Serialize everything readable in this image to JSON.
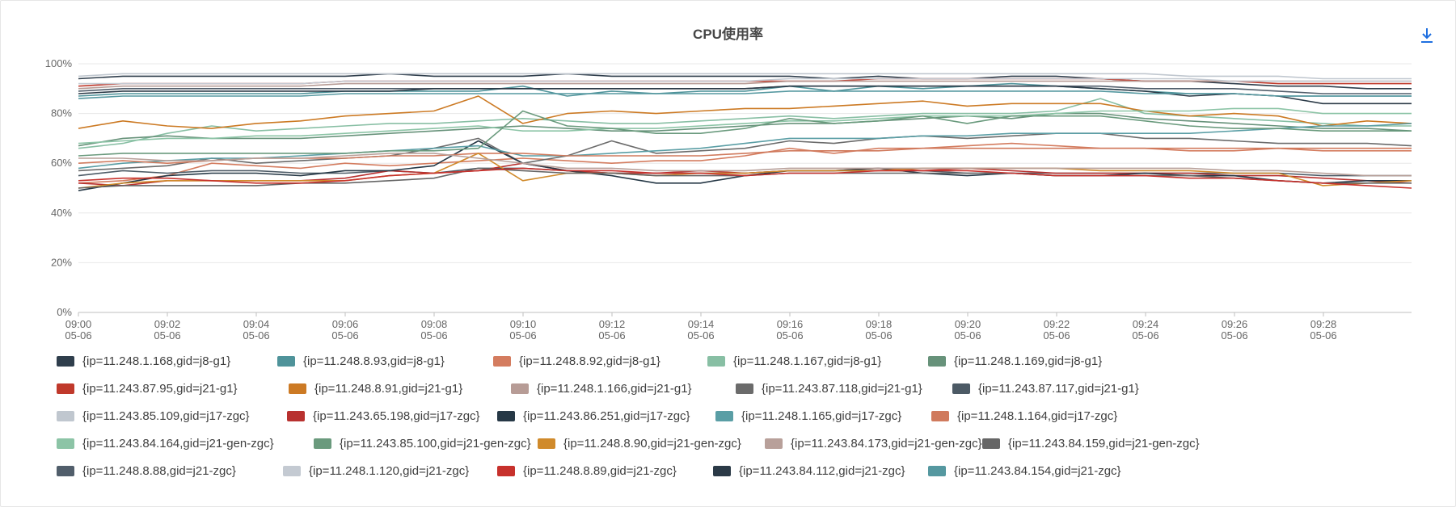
{
  "chart_data": {
    "type": "line",
    "title": "CPU使用率",
    "xlabel": "",
    "ylabel": "",
    "ylim": [
      0,
      100
    ],
    "y_ticks": [
      "0%",
      "20%",
      "40%",
      "60%",
      "80%",
      "100%"
    ],
    "x_ticks": [
      {
        "time": "09:00",
        "date": "05-06"
      },
      {
        "time": "09:02",
        "date": "05-06"
      },
      {
        "time": "09:04",
        "date": "05-06"
      },
      {
        "time": "09:06",
        "date": "05-06"
      },
      {
        "time": "09:08",
        "date": "05-06"
      },
      {
        "time": "09:10",
        "date": "05-06"
      },
      {
        "time": "09:12",
        "date": "05-06"
      },
      {
        "time": "09:14",
        "date": "05-06"
      },
      {
        "time": "09:16",
        "date": "05-06"
      },
      {
        "time": "09:18",
        "date": "05-06"
      },
      {
        "time": "09:20",
        "date": "05-06"
      },
      {
        "time": "09:22",
        "date": "05-06"
      },
      {
        "time": "09:24",
        "date": "05-06"
      },
      {
        "time": "09:26",
        "date": "05-06"
      },
      {
        "time": "09:28",
        "date": "05-06"
      }
    ],
    "x": [
      "09:00",
      "09:01",
      "09:02",
      "09:03",
      "09:04",
      "09:05",
      "09:06",
      "09:07",
      "09:08",
      "09:09",
      "09:10",
      "09:11",
      "09:12",
      "09:13",
      "09:14",
      "09:15",
      "09:16",
      "09:17",
      "09:18",
      "09:19",
      "09:20",
      "09:21",
      "09:22",
      "09:23",
      "09:24",
      "09:25",
      "09:26",
      "09:27",
      "09:28",
      "09:29",
      "09:30"
    ],
    "grid": true,
    "legend_position": "bottom",
    "series": [
      {
        "name": "{ip=11.248.1.168,gid=j8-g1}",
        "color": "#2f3e4c",
        "values": [
          94,
          95,
          95,
          95,
          95,
          95,
          95,
          96,
          95,
          95,
          95,
          96,
          95,
          95,
          95,
          95,
          95,
          94,
          95,
          94,
          94,
          95,
          95,
          94,
          93,
          93,
          92,
          91,
          91,
          90,
          90
        ]
      },
      {
        "name": "{ip=11.248.8.93,gid=j8-g1}",
        "color": "#4f939a",
        "values": [
          87,
          88,
          88,
          88,
          88,
          88,
          89,
          89,
          89,
          89,
          91,
          87,
          89,
          88,
          89,
          89,
          91,
          89,
          91,
          90,
          91,
          92,
          91,
          90,
          89,
          88,
          88,
          87,
          87,
          87,
          87
        ]
      },
      {
        "name": "{ip=11.248.8.92,gid=j8-g1}",
        "color": "#d47c5f",
        "values": [
          52,
          53,
          55,
          60,
          59,
          58,
          60,
          59,
          60,
          61,
          62,
          61,
          60,
          61,
          61,
          63,
          66,
          64,
          66,
          66,
          67,
          68,
          67,
          66,
          66,
          65,
          65,
          66,
          65,
          65,
          65
        ]
      },
      {
        "name": "{ip=11.248.1.167,gid=j8-g1}",
        "color": "#88bfa4",
        "values": [
          66,
          68,
          72,
          75,
          73,
          74,
          75,
          76,
          76,
          77,
          78,
          77,
          76,
          76,
          77,
          78,
          79,
          78,
          79,
          80,
          80,
          80,
          81,
          86,
          80,
          79,
          78,
          77,
          76,
          75,
          75
        ]
      },
      {
        "name": "{ip=11.248.1.169,gid=j8-g1}",
        "color": "#67927a",
        "values": [
          67,
          70,
          71,
          70,
          70,
          70,
          71,
          72,
          73,
          74,
          75,
          74,
          73,
          73,
          74,
          75,
          76,
          76,
          77,
          78,
          79,
          78,
          80,
          80,
          78,
          77,
          76,
          75,
          74,
          74,
          73
        ]
      },
      {
        "name": "{ip=11.243.87.95,gid=j21-g1}",
        "color": "#c0392b",
        "values": [
          91,
          92,
          92,
          92,
          92,
          92,
          93,
          93,
          93,
          93,
          93,
          93,
          93,
          93,
          93,
          93,
          93,
          93,
          94,
          94,
          94,
          94,
          94,
          94,
          93,
          93,
          93,
          92,
          92,
          92,
          92
        ]
      },
      {
        "name": "{ip=11.248.8.91,gid=j21-g1}",
        "color": "#cc7a24",
        "values": [
          74,
          77,
          75,
          74,
          76,
          77,
          79,
          80,
          81,
          87,
          76,
          80,
          81,
          80,
          81,
          82,
          82,
          83,
          84,
          85,
          83,
          84,
          84,
          84,
          81,
          79,
          80,
          79,
          75,
          77,
          76
        ]
      },
      {
        "name": "{ip=11.248.1.166,gid=j21-g1}",
        "color": "#b79c96",
        "values": [
          90,
          91,
          91,
          91,
          91,
          91,
          92,
          92,
          92,
          92,
          92,
          92,
          92,
          92,
          92,
          92,
          93,
          93,
          93,
          93,
          93,
          93,
          93,
          93,
          93,
          93,
          93,
          93,
          93,
          93,
          93
        ]
      },
      {
        "name": "{ip=11.243.87.118,gid=j21-g1}",
        "color": "#6b6b6b",
        "values": [
          57,
          58,
          59,
          62,
          60,
          61,
          62,
          63,
          66,
          70,
          60,
          63,
          69,
          64,
          65,
          66,
          69,
          68,
          70,
          71,
          70,
          71,
          72,
          72,
          70,
          70,
          69,
          68,
          68,
          68,
          67
        ]
      },
      {
        "name": "{ip=11.243.87.117,gid=j21-g1}",
        "color": "#4c5a65",
        "values": [
          55,
          57,
          56,
          57,
          57,
          56,
          56,
          57,
          56,
          58,
          58,
          57,
          56,
          56,
          56,
          56,
          57,
          57,
          57,
          57,
          56,
          56,
          56,
          56,
          56,
          56,
          56,
          56,
          55,
          55,
          55
        ]
      },
      {
        "name": "{ip=11.243.85.109,gid=j17-zgc}",
        "color": "#c0c7cf",
        "values": [
          95,
          96,
          96,
          96,
          96,
          96,
          96,
          96,
          96,
          96,
          96,
          96,
          96,
          96,
          96,
          96,
          96,
          96,
          96,
          96,
          96,
          96,
          96,
          96,
          96,
          95,
          95,
          95,
          94,
          94,
          94
        ]
      },
      {
        "name": "{ip=11.243.65.198,gid=j17-zgc}",
        "color": "#b8312f",
        "values": [
          52,
          51,
          53,
          53,
          53,
          53,
          54,
          57,
          56,
          57,
          60,
          57,
          56,
          56,
          57,
          56,
          57,
          57,
          58,
          57,
          58,
          57,
          56,
          56,
          56,
          56,
          55,
          55,
          54,
          53,
          52
        ]
      },
      {
        "name": "{ip=11.243.86.251,gid=j17-zgc}",
        "color": "#263846",
        "values": [
          49,
          52,
          55,
          56,
          56,
          55,
          57,
          57,
          59,
          69,
          60,
          57,
          55,
          52,
          52,
          55,
          57,
          57,
          58,
          56,
          55,
          56,
          55,
          55,
          56,
          55,
          55,
          53,
          52,
          53,
          53
        ]
      },
      {
        "name": "{ip=11.248.1.165,gid=j17-zgc}",
        "color": "#5a9ea5",
        "values": [
          58,
          60,
          61,
          62,
          62,
          63,
          64,
          65,
          66,
          67,
          63,
          63,
          64,
          65,
          66,
          68,
          70,
          70,
          70,
          71,
          71,
          72,
          72,
          72,
          72,
          72,
          73,
          74,
          75,
          75,
          76
        ]
      },
      {
        "name": "{ip=11.248.1.164,gid=j17-zgc}",
        "color": "#d07a5d",
        "values": [
          60,
          61,
          60,
          61,
          62,
          62,
          62,
          63,
          63,
          64,
          64,
          63,
          63,
          63,
          63,
          64,
          65,
          65,
          65,
          66,
          66,
          66,
          66,
          66,
          66,
          66,
          66,
          66,
          66,
          66,
          66
        ]
      },
      {
        "name": "{ip=11.243.84.164,gid=j21-gen-zgc}",
        "color": "#8cc4a6",
        "values": [
          68,
          69,
          70,
          70,
          71,
          71,
          72,
          73,
          74,
          75,
          73,
          73,
          74,
          74,
          75,
          76,
          77,
          77,
          78,
          79,
          79,
          79,
          80,
          81,
          81,
          81,
          82,
          82,
          80,
          80,
          80
        ]
      },
      {
        "name": "{ip=11.243.85.100,gid=j21-gen-zgc}",
        "color": "#6a9a7d",
        "values": [
          63,
          64,
          64,
          64,
          64,
          64,
          64,
          65,
          65,
          66,
          81,
          75,
          74,
          72,
          72,
          74,
          78,
          76,
          77,
          79,
          76,
          79,
          79,
          79,
          77,
          75,
          74,
          74,
          73,
          73,
          73
        ]
      },
      {
        "name": "{ip=11.248.8.90,gid=j21-gen-zgc}",
        "color": "#d08a2b",
        "values": [
          50,
          52,
          53,
          53,
          53,
          53,
          53,
          55,
          56,
          64,
          53,
          56,
          56,
          55,
          56,
          56,
          57,
          57,
          57,
          58,
          58,
          58,
          58,
          57,
          57,
          57,
          56,
          56,
          51,
          52,
          53
        ]
      },
      {
        "name": "{ip=11.243.84.173,gid=j21-gen-zgc}",
        "color": "#b8a09a",
        "values": [
          62,
          62,
          61,
          61,
          62,
          62,
          63,
          64,
          64,
          62,
          60,
          58,
          58,
          57,
          57,
          57,
          58,
          58,
          58,
          58,
          58,
          58,
          58,
          58,
          58,
          58,
          57,
          57,
          56,
          55,
          55
        ]
      },
      {
        "name": "{ip=11.243.84.159,gid=j21-gen-zgc}",
        "color": "#666666",
        "values": [
          50,
          51,
          51,
          51,
          51,
          52,
          52,
          53,
          54,
          58,
          57,
          56,
          56,
          55,
          55,
          55,
          56,
          56,
          56,
          56,
          56,
          56,
          55,
          55,
          55,
          55,
          54,
          53,
          52,
          52,
          52
        ]
      },
      {
        "name": "{ip=11.248.8.88,gid=j21-zgc}",
        "color": "#515e6b",
        "values": [
          89,
          90,
          90,
          90,
          90,
          90,
          90,
          90,
          90,
          90,
          90,
          90,
          90,
          90,
          90,
          90,
          91,
          91,
          91,
          91,
          91,
          91,
          91,
          91,
          90,
          90,
          90,
          89,
          88,
          88,
          88
        ]
      },
      {
        "name": "{ip=11.248.1.120,gid=j21-zgc}",
        "color": "#c4cad2",
        "values": [
          92,
          92,
          92,
          92,
          92,
          92,
          93,
          93,
          93,
          93,
          93,
          93,
          93,
          93,
          93,
          93,
          94,
          94,
          94,
          94,
          94,
          94,
          94,
          94,
          94,
          94,
          93,
          93,
          93,
          93,
          93
        ]
      },
      {
        "name": "{ip=11.248.8.89,gid=j21-zgc}",
        "color": "#c7312c",
        "values": [
          53,
          54,
          54,
          53,
          52,
          52,
          53,
          55,
          56,
          57,
          58,
          57,
          57,
          56,
          56,
          55,
          56,
          56,
          57,
          57,
          57,
          56,
          55,
          55,
          55,
          54,
          54,
          53,
          52,
          51,
          50
        ]
      },
      {
        "name": "{ip=11.243.84.112,gid=j21-zgc}",
        "color": "#2b3a47",
        "values": [
          88,
          89,
          89,
          89,
          89,
          89,
          89,
          89,
          90,
          90,
          90,
          90,
          90,
          90,
          90,
          90,
          91,
          91,
          91,
          91,
          91,
          91,
          91,
          90,
          89,
          87,
          88,
          87,
          84,
          84,
          84
        ]
      },
      {
        "name": "{ip=11.243.84.154,gid=j21-zgc}",
        "color": "#5598a0",
        "values": [
          86,
          87,
          87,
          87,
          87,
          87,
          88,
          88,
          88,
          88,
          88,
          88,
          88,
          88,
          88,
          88,
          89,
          89,
          89,
          89,
          89,
          89,
          89,
          89,
          88,
          88,
          88,
          87,
          87,
          87,
          87
        ]
      }
    ]
  },
  "toolbar": {
    "download_icon": "download-icon"
  }
}
